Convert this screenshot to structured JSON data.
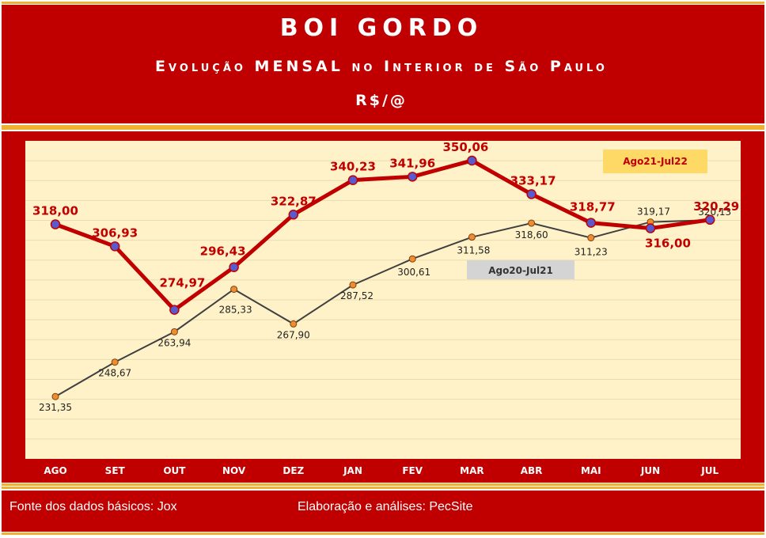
{
  "header": {
    "title": "BOI GORDO",
    "subtitle": "Evolução MENSAL no Interior de São Paulo",
    "unit": "R$/@"
  },
  "footer": {
    "source": "Fonte dos dados básicos: Jox",
    "author": "Elaboração e análises: PecSite"
  },
  "colors": {
    "band": "#c00000",
    "stripe": "#f0b030",
    "plot_bg": "#fff2c8",
    "series_current": "#c00000",
    "series_previous": "#404040"
  },
  "chart_data": {
    "type": "line",
    "categories": [
      "AGO",
      "SET",
      "OUT",
      "NOV",
      "DEZ",
      "JAN",
      "FEV",
      "MAR",
      "ABR",
      "MAI",
      "JUN",
      "JUL"
    ],
    "ylim": [
      200,
      360
    ],
    "grid": true,
    "series": [
      {
        "name": "Ago21-Jul22",
        "values": [
          318.0,
          306.93,
          274.97,
          296.43,
          322.87,
          340.23,
          341.96,
          350.06,
          333.17,
          318.77,
          316.0,
          320.29
        ],
        "labels": [
          "318,00",
          "306,93",
          "274,97",
          "296,43",
          "322,87",
          "340,23",
          "341,96",
          "350,06",
          "333,17",
          "318,77",
          "316,00",
          "320,29"
        ]
      },
      {
        "name": "Ago20-Jul21",
        "values": [
          231.35,
          248.67,
          263.94,
          285.33,
          267.9,
          287.52,
          300.61,
          311.58,
          318.6,
          311.23,
          319.17,
          320.13
        ],
        "labels": [
          "231,35",
          "248,67",
          "263,94",
          "285,33",
          "267,90",
          "287,52",
          "300,61",
          "311,58",
          "318,60",
          "311,23",
          "319,17",
          "320,13"
        ]
      }
    ]
  }
}
